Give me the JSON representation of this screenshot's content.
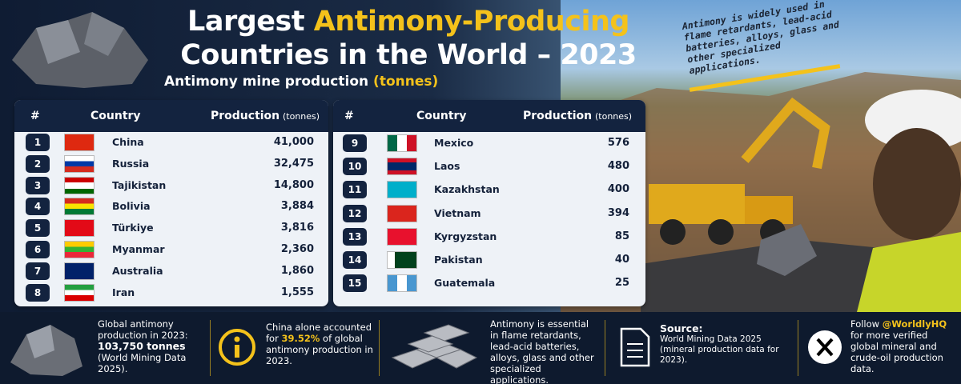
{
  "header": {
    "title_line1": [
      "Largest ",
      "Antimony-Producing"
    ],
    "title_line2": "Countries in the World – 2023",
    "subtitle": "Antimony mine production",
    "subtitle_unit": "(tonnes)"
  },
  "note": "Antimony is widely used in flame retardants, lead-acid batteries, alloys, glass and other specialized applications.",
  "tables": [
    {
      "columns": [
        "#",
        "Country",
        "Production"
      ],
      "unit": "(tonnes)",
      "rows": [
        [
          1,
          "China",
          "41,000"
        ],
        [
          2,
          "Russia",
          "32,475"
        ],
        [
          3,
          "Tajikistan",
          "14,800"
        ],
        [
          4,
          "Bolivia",
          "3,884"
        ],
        [
          5,
          "Türkiye",
          "3,816"
        ],
        [
          6,
          "Myanmar",
          "2,360"
        ],
        [
          7,
          "Australia",
          "1,860"
        ],
        [
          8,
          "Iran",
          "1,555"
        ]
      ]
    },
    {
      "columns": [
        "#",
        "Country",
        "Production"
      ],
      "unit": "(tonnes)",
      "rows": [
        [
          9,
          "Mexico",
          "576"
        ],
        [
          10,
          "Laos",
          "480"
        ],
        [
          11,
          "Kazakhstan",
          "400"
        ],
        [
          12,
          "Vietnam",
          "394"
        ],
        [
          13,
          "Kyrgyzstan",
          "85"
        ],
        [
          14,
          "Pakistan",
          "40"
        ],
        [
          15,
          "Guatemala",
          "25"
        ]
      ]
    }
  ],
  "footer": [
    {
      "lines": [
        "Global antimony production in 2023:",
        "103,750 tonnes",
        "(World Mining Data 2025)."
      ]
    },
    {
      "lines": [
        "China alone accounted for",
        "39.52%",
        "of global antimony production in 2023."
      ]
    },
    {
      "lines": [
        "Antimony is essential in flame retardants, lead-acid batteries, alloys, glass and other specialized applications."
      ]
    },
    {
      "lines": [
        "Source:",
        "World Mining Data 2025 (mineral production data for 2023)."
      ]
    },
    {
      "lines": [
        "Follow",
        "@WorldlyHQ",
        "for more verified global mineral and crude-oil production data."
      ]
    }
  ]
}
